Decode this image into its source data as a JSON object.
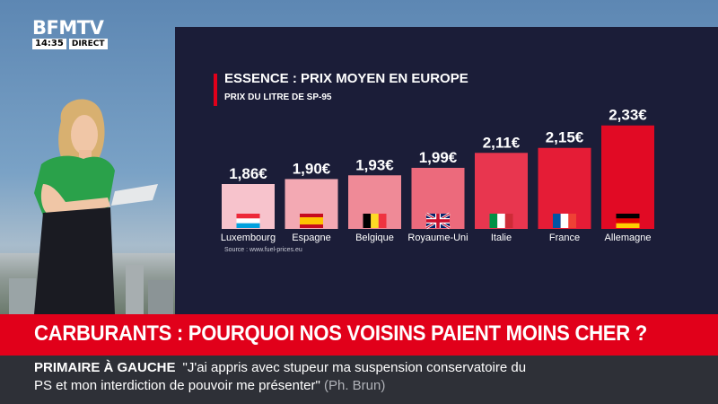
{
  "channel": {
    "logo": "BFMTV",
    "time": "14:35",
    "live": "DIRECT"
  },
  "chart_data": {
    "type": "bar",
    "title": "ESSENCE : PRIX MOYEN EN EUROPE",
    "subtitle": "PRIX DU LITRE DE SP-95",
    "source": "Source : www.fuel-prices.eu",
    "categories": [
      "Luxembourg",
      "Espagne",
      "Belgique",
      "Royaume-Uni",
      "Italie",
      "France",
      "Allemagne"
    ],
    "values": [
      1.86,
      1.9,
      1.93,
      1.99,
      2.11,
      2.15,
      2.33
    ],
    "value_labels": [
      "1,86€",
      "1,90€",
      "1,93€",
      "1,99€",
      "2,11€",
      "2,15€",
      "2,33€"
    ],
    "bar_colors": [
      "#f7c3cc",
      "#f3a9b3",
      "#ef8a97",
      "#ec6a7c",
      "#e8364f",
      "#e51c36",
      "#e10a24"
    ],
    "flag_icons": [
      "luxembourg-flag-icon",
      "spain-flag-icon",
      "belgium-flag-icon",
      "uk-flag-icon",
      "italy-flag-icon",
      "france-flag-icon",
      "germany-flag-icon"
    ],
    "ylim": [
      1.5,
      2.4
    ]
  },
  "headline": "CARBURANTS : POURQUOI NOS VOISINS PAIENT MOINS CHER ?",
  "ticker": {
    "category": "PRIMAIRE À GAUCHE",
    "quote_line1": "\"J'ai appris avec stupeur ma suspension conservatoire du",
    "quote_line2": "PS et mon interdiction de pouvoir me présenter\"",
    "author": "(Ph. Brun)"
  },
  "colors": {
    "brand_red": "#e1001a",
    "panel": "#1b1d38",
    "ticker": "#2e3037"
  }
}
